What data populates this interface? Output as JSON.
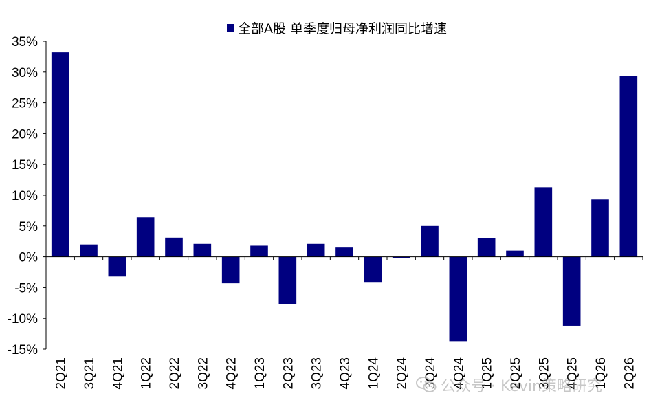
{
  "chart_data": {
    "type": "bar",
    "legend": {
      "label": "全部A股 单季度归母净利润同比增速",
      "position": "top-center"
    },
    "series": [
      {
        "name": "全部A股 单季度归母净利润同比增速",
        "color": "#000080",
        "values": [
          33.2,
          2.0,
          -3.2,
          6.4,
          3.1,
          2.1,
          -4.3,
          1.8,
          -7.7,
          2.1,
          1.5,
          -4.2,
          -0.2,
          5.0,
          -13.7,
          3.0,
          1.0,
          11.3,
          -11.2,
          9.3,
          29.4
        ]
      }
    ],
    "categories": [
      "2Q21",
      "3Q21",
      "4Q21",
      "1Q22",
      "2Q22",
      "3Q22",
      "4Q22",
      "1Q23",
      "2Q23",
      "3Q23",
      "4Q23",
      "1Q24",
      "2Q24",
      "3Q24",
      "4Q24",
      "1Q25",
      "2Q25",
      "3Q25",
      "4Q25",
      "1Q26",
      "2Q26"
    ],
    "ylim": [
      -15,
      35
    ],
    "yticks": [
      35,
      30,
      25,
      20,
      15,
      10,
      5,
      0,
      -5,
      -10,
      -15
    ],
    "ytick_labels": [
      "35%",
      "30%",
      "25%",
      "20%",
      "15%",
      "10%",
      "5%",
      "0%",
      "-5%",
      "-10%",
      "-15%"
    ],
    "grid": false
  },
  "watermark": {
    "text": "公众号 · Kevin策略研究",
    "icon": "wechat-icon"
  }
}
